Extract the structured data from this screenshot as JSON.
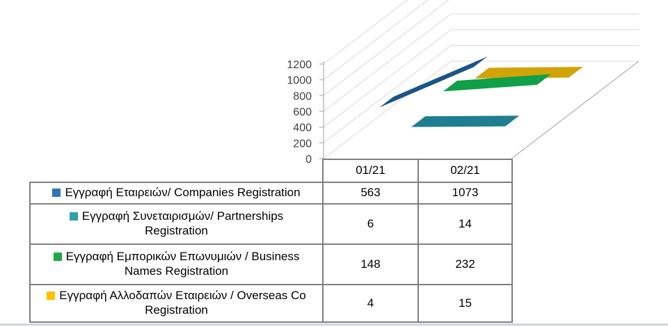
{
  "chart_data": {
    "type": "line",
    "subtype": "3d-ribbon-line",
    "title": "",
    "xlabel": "",
    "ylabel": "",
    "categories": [
      "01/21",
      "02/21"
    ],
    "y_ticks": [
      0,
      200,
      400,
      600,
      800,
      1000,
      1200
    ],
    "ylim": [
      0,
      1200
    ],
    "grid": true,
    "legend_position": "data-table-left",
    "series": [
      {
        "id": "companies",
        "label": "Εγγραφή Εταιρειών/ Companies Registration",
        "values": [
          563,
          1073
        ],
        "marker_color": "#2E75B6",
        "ribbon_color": "#1B5487"
      },
      {
        "id": "partnerships",
        "label": "Εγγραφή Συνεταιρισμών/ Partnerships Registration",
        "values": [
          6,
          14
        ],
        "marker_color": "#31A0AA",
        "ribbon_color": "#1F7E90"
      },
      {
        "id": "business-names",
        "label": "Εγγραφή Εμπορικών Επωνυμιών / Business Names Registration",
        "values": [
          148,
          232
        ],
        "marker_color": "#21A84A",
        "ribbon_color": "#0FA048"
      },
      {
        "id": "overseas-co",
        "label": "Εγγραφή Αλλοδαπών Εταιρειών / Overseas Co Registration",
        "values": [
          4,
          15
        ],
        "marker_color": "#FFC000",
        "ribbon_color": "#D2A306"
      }
    ]
  },
  "colors": {
    "gridline": "#d9d9d9",
    "axis_line": "#bfbfbf",
    "floor_edge": "#a0a0a0",
    "tick_label": "#3f3f3f",
    "table_border": "#7f7f7f",
    "screen_edge": "#ccd7dc"
  }
}
